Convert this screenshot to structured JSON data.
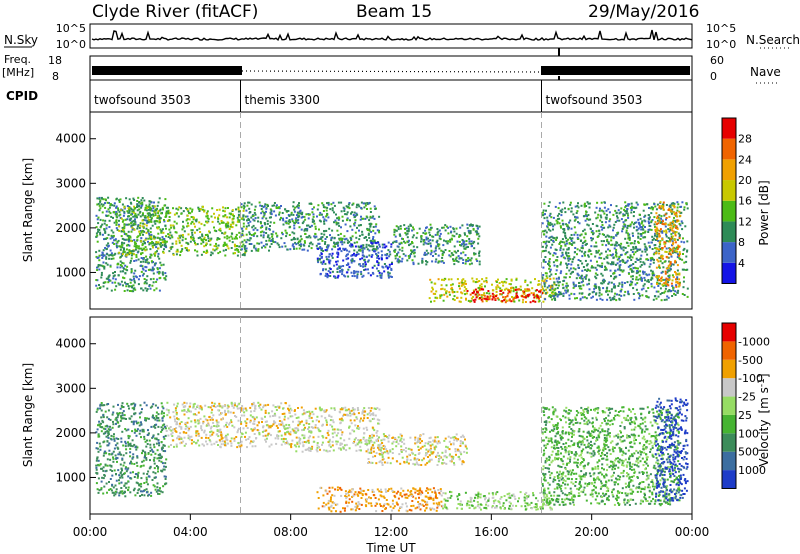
{
  "header": {
    "station": "Clyde River (fitACF)",
    "beam": "Beam 15",
    "date": "29/May/2016"
  },
  "strip_labels": {
    "nsky": "N.Sky",
    "nsearch": "N.Search",
    "freq_line1": "Freq.",
    "freq_line2": "[MHz]",
    "nave": "Nave",
    "cpid": "CPID",
    "nsky_ticks": [
      "10^5",
      "10^0"
    ],
    "nsearch_ticks": [
      "10^5",
      "10^0"
    ],
    "freq_ticks": [
      "18",
      "8"
    ],
    "nave_ticks": [
      "60",
      "0"
    ]
  },
  "cpid_segments": [
    {
      "label": "twofsound 3503",
      "start_hour": 0,
      "end_hour": 6
    },
    {
      "label": "themis 3300",
      "start_hour": 6,
      "end_hour": 18
    },
    {
      "label": "twofsound 3503",
      "start_hour": 18,
      "end_hour": 24
    }
  ],
  "time_axis": {
    "label": "Time UT",
    "tick_labels": [
      "00:00",
      "04:00",
      "08:00",
      "12:00",
      "16:00",
      "20:00",
      "00:00"
    ],
    "tick_hours": [
      0,
      4,
      8,
      12,
      16,
      20,
      24
    ]
  },
  "chart_data": [
    {
      "type": "heatmap",
      "panel": "power",
      "ylabel": "Slant Range [km]",
      "ylim": [
        180,
        4600
      ],
      "yticks": [
        1000,
        2000,
        3000,
        4000
      ],
      "xlim": [
        0,
        24
      ],
      "colorbar": {
        "label": "Power [dB]",
        "tick_labels": [
          "4",
          "8",
          "12",
          "16",
          "20",
          "24",
          "28"
        ],
        "colors": [
          "#1414e6",
          "#3c64c8",
          "#2e8b57",
          "#4cbb17",
          "#c8c800",
          "#f0a000",
          "#f06400",
          "#e60000"
        ]
      },
      "features": [
        {
          "t0": 0.2,
          "t1": 3.0,
          "r0": 600,
          "r1": 2700,
          "level": 2
        },
        {
          "t0": 1.0,
          "t1": 6.2,
          "r0": 1400,
          "r1": 2500,
          "level": 3
        },
        {
          "t0": 6.0,
          "t1": 11.5,
          "r0": 1500,
          "r1": 2600,
          "level": 2
        },
        {
          "t0": 9.0,
          "t1": 12.0,
          "r0": 900,
          "r1": 1700,
          "level": 1
        },
        {
          "t0": 12.0,
          "t1": 15.5,
          "r0": 1200,
          "r1": 2100,
          "level": 2
        },
        {
          "t0": 13.5,
          "t1": 18.5,
          "r0": 350,
          "r1": 900,
          "level": 4
        },
        {
          "t0": 15.0,
          "t1": 18.0,
          "r0": 350,
          "r1": 650,
          "level": 7
        },
        {
          "t0": 18.0,
          "t1": 23.8,
          "r0": 400,
          "r1": 2600,
          "level": 2
        },
        {
          "t0": 22.5,
          "t1": 23.5,
          "r0": 700,
          "r1": 2600,
          "level": 5
        }
      ]
    },
    {
      "type": "heatmap",
      "panel": "velocity",
      "ylabel": "Slant Range [km]",
      "ylim": [
        180,
        4600
      ],
      "yticks": [
        1000,
        2000,
        3000,
        4000
      ],
      "xlim": [
        0,
        24
      ],
      "colorbar": {
        "label_main": "Velocity",
        "label_unit": "[m s",
        "label_exp": "-1",
        "label_close": "]",
        "tick_labels": [
          "1000",
          "500",
          "100",
          "25",
          "-25",
          "-100",
          "-500",
          "-1000"
        ],
        "colors": [
          "#1e3cc8",
          "#3c6ea0",
          "#3c8c5a",
          "#46b432",
          "#96dc64",
          "#c8c8c8",
          "#f0a000",
          "#f06400",
          "#e60000"
        ]
      },
      "features": [
        {
          "t0": 0.2,
          "t1": 3.0,
          "r0": 600,
          "r1": 2700,
          "level": 2
        },
        {
          "t0": 3.0,
          "t1": 8.0,
          "r0": 1700,
          "r1": 2700,
          "level": 5
        },
        {
          "t0": 8.0,
          "t1": 11.5,
          "r0": 1600,
          "r1": 2600,
          "level": 5
        },
        {
          "t0": 11.0,
          "t1": 15.0,
          "r0": 1300,
          "r1": 2000,
          "level": 5
        },
        {
          "t0": 9.0,
          "t1": 14.0,
          "r0": 250,
          "r1": 800,
          "level": 6
        },
        {
          "t0": 14.0,
          "t1": 18.5,
          "r0": 300,
          "r1": 700,
          "level": 4
        },
        {
          "t0": 18.0,
          "t1": 23.5,
          "r0": 400,
          "r1": 2600,
          "level": 3
        },
        {
          "t0": 22.5,
          "t1": 23.8,
          "r0": 500,
          "r1": 2800,
          "level": 0
        }
      ]
    }
  ]
}
